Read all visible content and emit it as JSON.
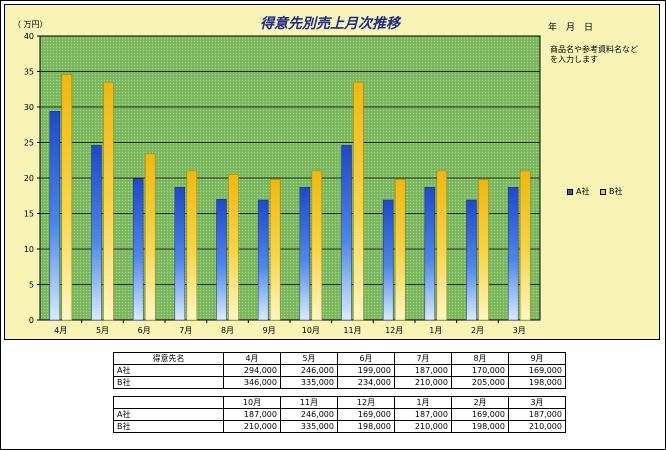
{
  "chart_data": {
    "type": "bar",
    "title": "得意先別売上月次推移",
    "ylabel": "（ 万円）",
    "ylim": [
      0,
      40
    ],
    "yticks": [
      0,
      5,
      10,
      15,
      20,
      25,
      30,
      35,
      40
    ],
    "grid": true,
    "legend_position": "right",
    "categories": [
      "4月",
      "5月",
      "6月",
      "7月",
      "8月",
      "9月",
      "10月",
      "11月",
      "12月",
      "1月",
      "2月",
      "3月"
    ],
    "series": [
      {
        "name": "A社",
        "values": [
          29.4,
          24.6,
          19.9,
          18.7,
          17.0,
          16.9,
          18.7,
          24.6,
          16.9,
          18.7,
          16.9,
          18.7
        ]
      },
      {
        "name": "B社",
        "values": [
          34.6,
          33.5,
          23.4,
          21.0,
          20.5,
          19.8,
          21.0,
          33.5,
          19.8,
          21.0,
          19.8,
          21.0
        ]
      }
    ]
  },
  "header": {
    "date_text": "年　月　日",
    "note_text": "商品名や参考資料名など\nを入力します"
  },
  "colors": {
    "plot_background": "#7fbb62",
    "chart_background": "#f7f4b6",
    "series_a": "#2e5fd8",
    "series_b": "#f5c21a",
    "title": "#1e2a8a"
  },
  "table1": {
    "corner": "得意先名",
    "months": [
      "4月",
      "5月",
      "6月",
      "7月",
      "8月",
      "9月"
    ],
    "rows": [
      {
        "label": "A社",
        "values": [
          "294,000",
          "246,000",
          "199,000",
          "187,000",
          "170,000",
          "169,000"
        ]
      },
      {
        "label": "B社",
        "values": [
          "346,000",
          "335,000",
          "234,000",
          "210,000",
          "205,000",
          "198,000"
        ]
      }
    ]
  },
  "table2": {
    "months": [
      "10月",
      "11月",
      "12月",
      "1月",
      "2月",
      "3月"
    ],
    "rows": [
      {
        "label": "A社",
        "values": [
          "187,000",
          "246,000",
          "169,000",
          "187,000",
          "169,000",
          "187,000"
        ]
      },
      {
        "label": "B社",
        "values": [
          "210,000",
          "335,000",
          "198,000",
          "210,000",
          "198,000",
          "210,000"
        ]
      }
    ]
  }
}
